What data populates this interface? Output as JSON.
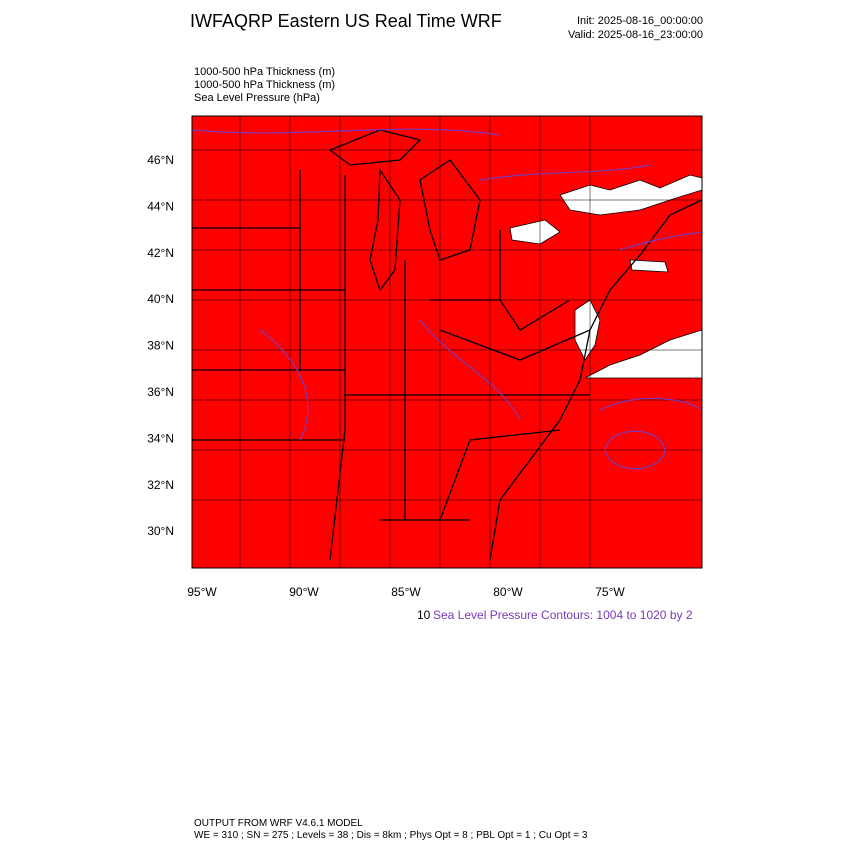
{
  "header": {
    "title": "IWFAQRP Eastern US Real Time WRF",
    "init": "Init: 2025-08-16_00:00:00",
    "valid": "Valid: 2025-08-16_23:00:00"
  },
  "fields": [
    "1000-500 hPa Thickness   (m)",
    "1000-500 hPa Thickness   (m)",
    "Sea Level Pressure   (hPa)"
  ],
  "lat_labels": [
    "46°N",
    "44°N",
    "42°N",
    "40°N",
    "38°N",
    "36°N",
    "34°N",
    "32°N",
    "30°N"
  ],
  "lon_labels": [
    "95°W",
    "90°W",
    "85°W",
    "80°W",
    "75°W"
  ],
  "legend": {
    "prefix": "10",
    "contours": "Sea Level Pressure Contours: 1004 to 1020 by 2"
  },
  "footer": [
    "OUTPUT FROM WRF V4.6.1 MODEL",
    "WE = 310 ; SN = 275 ; Levels = 38 ; Dis = 8km ; Phys Opt = 8 ; PBL Opt = 1 ; Cu Opt = 3"
  ]
}
